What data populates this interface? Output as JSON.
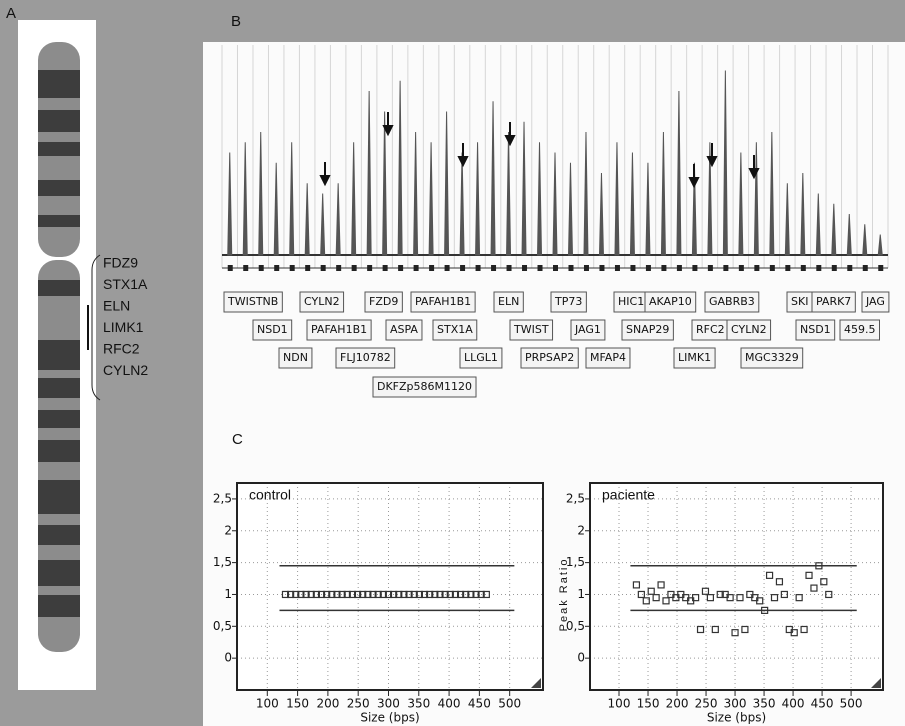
{
  "panels": {
    "a": "A",
    "b": "B",
    "c": "C"
  },
  "ideogram": {
    "genes": [
      "FDZ9",
      "STX1A",
      "ELN",
      "LIMK1",
      "RFC2",
      "CYLN2"
    ]
  },
  "electropherogram": {
    "labels": [
      [
        "TWISTNB",
        "CYLN2",
        "FZD9",
        "PAFAH1B1",
        "ELN",
        "TP73",
        "HIC1",
        "AKAP10",
        "GABRB3",
        "SKI",
        "PARK7",
        "JAG"
      ],
      [
        "NSD1",
        "PAFAH1B1",
        "ASPA",
        "STX1A",
        "TWIST",
        "JAG1",
        "SNAP29",
        "RFC2",
        "CYLN2",
        "NSD1",
        "459.5"
      ],
      [
        "NDN",
        "FLJ10782",
        "LLGL1",
        "PRPSAP2",
        "MFAP4",
        "LIMK1",
        "MGC3329"
      ],
      [
        "DKFZp586M1120"
      ]
    ]
  },
  "chart_data": [
    {
      "type": "peaks",
      "ylim": [
        0,
        1
      ],
      "color": "#555555",
      "values": [
        0.5,
        0.55,
        0.6,
        0.45,
        0.55,
        0.35,
        0.3,
        0.35,
        0.55,
        0.8,
        0.7,
        0.85,
        0.6,
        0.55,
        0.7,
        0.5,
        0.55,
        0.75,
        0.6,
        0.65,
        0.55,
        0.5,
        0.45,
        0.6,
        0.4,
        0.55,
        0.5,
        0.45,
        0.6,
        0.8,
        0.45,
        0.55,
        0.9,
        0.5,
        0.55,
        0.6,
        0.35,
        0.4,
        0.3,
        0.25,
        0.2,
        0.15,
        0.1
      ]
    },
    {
      "type": "scatter",
      "title": "control",
      "xlabel": "Size (bps)",
      "grid": true,
      "color": "#333333",
      "x": [
        130,
        138.5,
        147,
        155.5,
        164,
        172.5,
        181,
        189.5,
        198,
        206.5,
        215,
        223.5,
        232,
        240.5,
        249,
        257.5,
        266,
        274.5,
        283,
        291.5,
        300,
        308.5,
        317,
        325.5,
        334,
        342.5,
        351,
        359.5,
        368,
        376.5,
        385,
        393.5,
        402,
        410.5,
        419,
        427.5,
        436,
        444.5,
        453,
        461.5
      ],
      "values": [
        1,
        1,
        1,
        1,
        1,
        1,
        1,
        1,
        1,
        1,
        1,
        1,
        1,
        1,
        1,
        1,
        1,
        1,
        1,
        1,
        1,
        1,
        1,
        1,
        1,
        1,
        1,
        1,
        1,
        1,
        1,
        1,
        1,
        1,
        1,
        1,
        1,
        1,
        1,
        1
      ],
      "reference_lines": [
        0.75,
        1.45
      ],
      "xlim": [
        50,
        555
      ],
      "ylim": [
        -0.5,
        2.75
      ],
      "xticks": [
        100,
        150,
        200,
        250,
        300,
        350,
        400,
        450,
        500
      ],
      "yticks": [
        0,
        {
          "value": 0.5,
          "label": "0,5"
        },
        1,
        {
          "value": 1.5,
          "label": "1,5"
        },
        2,
        {
          "value": 2.5,
          "label": "2,5"
        }
      ]
    },
    {
      "type": "scatter",
      "title": "paciente",
      "xlabel": "Size (bps)",
      "ylabel": "Peak Ratio",
      "grid": true,
      "color": "#333333",
      "x": [
        130,
        138.5,
        147,
        155.5,
        164,
        172.5,
        181,
        189.5,
        198,
        206.5,
        215,
        223.5,
        232,
        240.5,
        249,
        257.5,
        266,
        274.5,
        283,
        291.5,
        300,
        308.5,
        317,
        325.5,
        334,
        342.5,
        351,
        359.5,
        368,
        376.5,
        385,
        393.5,
        402,
        410.5,
        419,
        427.5,
        436,
        444.5,
        453,
        461.5
      ],
      "values": [
        1.15,
        1.0,
        0.9,
        1.05,
        0.95,
        1.15,
        0.9,
        1.0,
        0.95,
        1.0,
        0.95,
        0.9,
        0.95,
        0.45,
        1.05,
        0.95,
        0.45,
        1.0,
        1.0,
        0.95,
        0.4,
        0.95,
        0.45,
        1.0,
        0.95,
        0.9,
        0.75,
        1.3,
        0.95,
        1.2,
        1.0,
        0.45,
        0.4,
        0.95,
        0.45,
        1.3,
        1.1,
        1.45,
        1.2,
        1.0
      ],
      "reference_lines": [
        0.75,
        1.45
      ],
      "xlim": [
        50,
        555
      ],
      "ylim": [
        -0.5,
        2.75
      ],
      "xticks": [
        100,
        150,
        200,
        250,
        300,
        350,
        400,
        450,
        500
      ],
      "yticks": [
        0,
        {
          "value": 0.5,
          "label": "0,5"
        },
        1,
        {
          "value": 1.5,
          "label": "1,5"
        },
        2,
        {
          "value": 2.5,
          "label": "2,5"
        }
      ]
    }
  ]
}
